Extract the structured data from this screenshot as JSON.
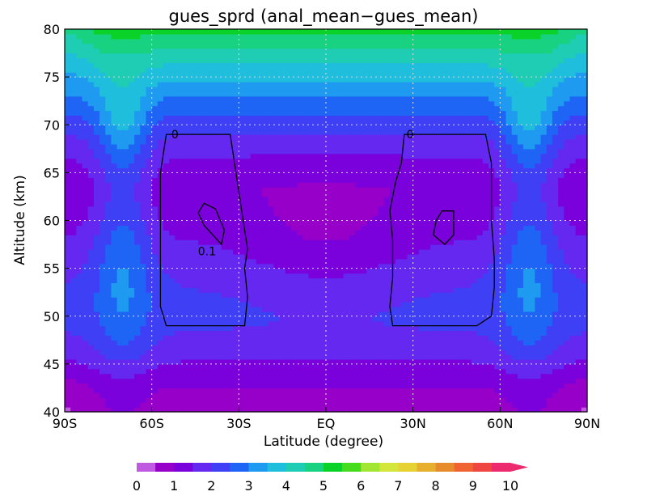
{
  "chart_data": {
    "type": "heatmap",
    "title": "gues_sprd (anal_mean−gues_mean)",
    "xlabel": "Latitude (degree)",
    "ylabel": "Altitude (km)",
    "xlim": [
      -90,
      90
    ],
    "ylim": [
      40,
      80
    ],
    "x_ticks": [
      {
        "value": -90,
        "label": "90S"
      },
      {
        "value": -60,
        "label": "60S"
      },
      {
        "value": -30,
        "label": "30S"
      },
      {
        "value": 0,
        "label": "EQ"
      },
      {
        "value": 30,
        "label": "30N"
      },
      {
        "value": 60,
        "label": "60N"
      },
      {
        "value": 90,
        "label": "90N"
      }
    ],
    "y_ticks": [
      {
        "value": 40,
        "label": "40"
      },
      {
        "value": 45,
        "label": "45"
      },
      {
        "value": 50,
        "label": "50"
      },
      {
        "value": 55,
        "label": "55"
      },
      {
        "value": 60,
        "label": "60"
      },
      {
        "value": 65,
        "label": "65"
      },
      {
        "value": 70,
        "label": "70"
      },
      {
        "value": 75,
        "label": "75"
      },
      {
        "value": 80,
        "label": "80"
      }
    ],
    "grid": true,
    "colorbar": {
      "placement": "bottom",
      "min": 0,
      "max": 10,
      "step": 0.5,
      "tick_labels": [
        "0",
        "1",
        "2",
        "3",
        "4",
        "5",
        "6",
        "7",
        "8",
        "9",
        "10"
      ],
      "colors": [
        "#c05ae0",
        "#9600c8",
        "#7a00dc",
        "#6428f0",
        "#3f40f5",
        "#1e64f5",
        "#1e9bf0",
        "#1ebedc",
        "#1ecdb4",
        "#18d282",
        "#0ad228",
        "#46dc1e",
        "#a0e632",
        "#d2e63c",
        "#e6d232",
        "#e6af2d",
        "#e68c2d",
        "#f06432",
        "#f04641",
        "#ee2a6e"
      ],
      "extend_max": true
    },
    "contours": [
      {
        "label": "0",
        "points": [
          [
            -50,
            69
          ],
          [
            -33,
            69
          ],
          [
            -32,
            67
          ],
          [
            -30,
            63
          ],
          [
            -28,
            59
          ],
          [
            -27,
            57
          ],
          [
            -28,
            55
          ],
          [
            -27,
            52
          ],
          [
            -28,
            49
          ],
          [
            -30,
            49
          ],
          [
            -55,
            49
          ],
          [
            -57,
            51
          ],
          [
            -57,
            56
          ],
          [
            -57,
            60
          ],
          [
            -57,
            65
          ],
          [
            -55,
            69
          ]
        ],
        "label_at": [
          -52,
          69
        ]
      },
      {
        "label": "0",
        "points": [
          [
            29,
            69
          ],
          [
            55,
            69
          ],
          [
            57,
            66
          ],
          [
            57,
            60
          ],
          [
            58,
            56
          ],
          [
            58,
            53
          ],
          [
            57,
            50
          ],
          [
            52,
            49
          ],
          [
            23,
            49
          ],
          [
            22,
            51
          ],
          [
            23,
            54
          ],
          [
            23,
            58
          ],
          [
            22,
            61
          ],
          [
            24,
            64
          ],
          [
            26,
            66
          ],
          [
            27,
            69
          ]
        ],
        "label_at": [
          29,
          69
        ]
      },
      {
        "label": "0.1",
        "points": [
          [
            -42,
            61.8
          ],
          [
            -38,
            61.2
          ],
          [
            -35,
            59
          ],
          [
            -36,
            57.5
          ],
          [
            -39,
            58.5
          ],
          [
            -42,
            59.5
          ],
          [
            -44,
            60.8
          ]
        ],
        "label_at": [
          -41,
          56.8
        ]
      },
      {
        "label": "",
        "points": [
          [
            40,
            61
          ],
          [
            44,
            61
          ],
          [
            44,
            58.5
          ],
          [
            41,
            57.5
          ],
          [
            37,
            58.5
          ],
          [
            38,
            60
          ]
        ]
      }
    ],
    "value_range": [
      0,
      6.5
    ]
  }
}
